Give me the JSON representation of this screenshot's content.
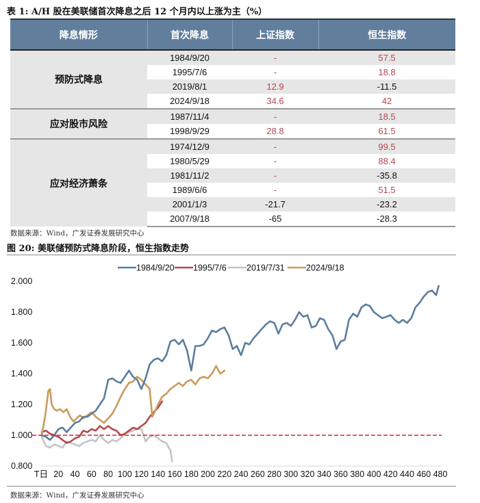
{
  "table": {
    "caption_prefix": "表 1:",
    "caption_main": "A/H 股在美联储首次降息之后 12 个月内以上涨为主（%）",
    "headers": [
      "降息情形",
      "首次降息",
      "上证指数",
      "恒生指数"
    ],
    "groups": [
      {
        "label": "预防式降息",
        "rows": [
          {
            "date": "1984/9/20",
            "sse": "-",
            "hsi": "57.5",
            "sse_color": "red",
            "hsi_color": "red"
          },
          {
            "date": "1995/7/6",
            "sse": "-",
            "hsi": "18.8",
            "sse_color": "red",
            "hsi_color": "red"
          },
          {
            "date": "2019/8/1",
            "sse": "12.9",
            "hsi": "-11.5",
            "sse_color": "red",
            "hsi_color": "black"
          },
          {
            "date": "2024/9/18",
            "sse": "34.6",
            "hsi": "42",
            "sse_color": "red",
            "hsi_color": "red"
          }
        ]
      },
      {
        "label": "应对股市风险",
        "rows": [
          {
            "date": "1987/11/4",
            "sse": "-",
            "hsi": "18.5",
            "sse_color": "red",
            "hsi_color": "red"
          },
          {
            "date": "1998/9/29",
            "sse": "28.8",
            "hsi": "61.5",
            "sse_color": "red",
            "hsi_color": "red"
          }
        ]
      },
      {
        "label": "应对经济萧条",
        "rows": [
          {
            "date": "1974/12/9",
            "sse": "-",
            "hsi": "99.5",
            "sse_color": "red",
            "hsi_color": "red"
          },
          {
            "date": "1980/5/29",
            "sse": "-",
            "hsi": "88.4",
            "sse_color": "red",
            "hsi_color": "red"
          },
          {
            "date": "1981/11/2",
            "sse": "-",
            "hsi": "-35.8",
            "sse_color": "red",
            "hsi_color": "black"
          },
          {
            "date": "1989/6/6",
            "sse": "-",
            "hsi": "51.5",
            "sse_color": "red",
            "hsi_color": "red"
          },
          {
            "date": "2001/1/3",
            "sse": "-21.7",
            "hsi": "-23.2",
            "sse_color": "black",
            "hsi_color": "black"
          },
          {
            "date": "2007/9/18",
            "sse": "-65",
            "hsi": "-28.3",
            "sse_color": "black",
            "hsi_color": "black"
          }
        ]
      }
    ],
    "source": "数据来源：Wind，广发证券发展研究中心"
  },
  "figure": {
    "caption_prefix": "图 20:",
    "caption_main": "美联储预防式降息阶段，恒生指数走势",
    "source": "数据来源：Wind，广发证券发展研究中心"
  },
  "colors": {
    "header_bg": "#617f9d",
    "positive_red": "#b5484f",
    "series_1984": "#5b7d9e",
    "series_1995": "#b5484f",
    "series_2019": "#c4c4c4",
    "series_2024": "#c99a5b",
    "baseline": "#d9242b"
  },
  "chart_data": {
    "type": "line",
    "title": "美联储预防式降息阶段，恒生指数走势",
    "xlabel": "",
    "ylabel": "",
    "ylim": [
      0.8,
      2.0
    ],
    "xlim": [
      0,
      480
    ],
    "y_ticks": [
      "2.000",
      "1.800",
      "1.600",
      "1.400",
      "1.200",
      "1.000",
      "0.800"
    ],
    "x_ticks": [
      "T日",
      "20",
      "40",
      "60",
      "80",
      "100",
      "120",
      "140",
      "160",
      "180",
      "200",
      "220",
      "240",
      "260",
      "280",
      "300",
      "320",
      "340",
      "360",
      "380",
      "400",
      "420",
      "440",
      "460",
      "480"
    ],
    "legend_position": "top",
    "grid": false,
    "reference_line": {
      "y": 1.0,
      "style": "dashed",
      "color": "#d9242b"
    },
    "series": [
      {
        "name": "1984/9/20",
        "x": [
          0,
          5,
          10,
          15,
          20,
          25,
          30,
          35,
          40,
          45,
          50,
          55,
          60,
          65,
          70,
          75,
          80,
          85,
          90,
          95,
          100,
          105,
          110,
          115,
          120,
          125,
          130,
          135,
          140,
          145,
          150,
          155,
          160,
          165,
          170,
          175,
          180,
          185,
          190,
          195,
          200,
          205,
          210,
          215,
          220,
          225,
          230,
          235,
          240,
          245,
          250,
          255,
          260,
          265,
          270,
          275,
          280,
          285,
          290,
          295,
          300,
          305,
          310,
          315,
          320,
          325,
          330,
          335,
          340,
          345,
          350,
          355,
          360,
          365,
          370,
          375,
          380,
          385,
          390,
          395,
          400,
          405,
          410,
          415,
          420,
          425,
          430,
          435,
          440,
          445,
          450,
          455,
          460,
          465,
          470,
          475,
          478
        ],
        "values": [
          1.0,
          0.99,
          0.97,
          1.0,
          1.04,
          1.05,
          1.02,
          1.05,
          1.08,
          1.09,
          1.12,
          1.12,
          1.14,
          1.16,
          1.2,
          1.24,
          1.36,
          1.37,
          1.35,
          1.34,
          1.38,
          1.42,
          1.38,
          1.36,
          1.3,
          1.37,
          1.46,
          1.49,
          1.5,
          1.48,
          1.52,
          1.61,
          1.62,
          1.59,
          1.62,
          1.55,
          1.42,
          1.58,
          1.58,
          1.59,
          1.63,
          1.68,
          1.67,
          1.69,
          1.7,
          1.65,
          1.56,
          1.58,
          1.52,
          1.6,
          1.59,
          1.63,
          1.66,
          1.69,
          1.72,
          1.74,
          1.73,
          1.66,
          1.72,
          1.73,
          1.71,
          1.75,
          1.8,
          1.77,
          1.78,
          1.7,
          1.71,
          1.76,
          1.75,
          1.69,
          1.65,
          1.56,
          1.61,
          1.62,
          1.75,
          1.79,
          1.77,
          1.83,
          1.85,
          1.84,
          1.8,
          1.78,
          1.76,
          1.77,
          1.78,
          1.75,
          1.73,
          1.75,
          1.73,
          1.76,
          1.83,
          1.86,
          1.9,
          1.93,
          1.94,
          1.91,
          1.97
        ]
      },
      {
        "name": "1995/7/6",
        "x": [
          0,
          5,
          10,
          15,
          20,
          25,
          30,
          35,
          40,
          45,
          50,
          55,
          60,
          65,
          70,
          75,
          80,
          85,
          90,
          95,
          100,
          105,
          110,
          115,
          120,
          125,
          130,
          135,
          140,
          145
        ],
        "values": [
          1.02,
          1.03,
          1.01,
          1.0,
          0.99,
          0.97,
          0.95,
          0.96,
          0.98,
          0.99,
          1.03,
          1.02,
          1.04,
          1.03,
          1.06,
          1.04,
          1.06,
          1.04,
          1.03,
          1.0,
          1.01,
          1.03,
          1.05,
          1.04,
          1.06,
          1.08,
          1.12,
          1.15,
          1.18,
          1.22
        ]
      },
      {
        "name": "2019/7/31",
        "x": [
          0,
          5,
          10,
          15,
          20,
          25,
          30,
          35,
          40,
          45,
          50,
          55,
          60,
          65,
          70,
          75,
          80,
          85,
          90,
          95,
          100,
          105,
          110,
          115,
          120,
          125,
          130,
          135,
          140,
          145,
          150,
          155,
          157
        ],
        "values": [
          0.99,
          0.93,
          0.92,
          0.94,
          0.93,
          0.92,
          0.96,
          0.95,
          0.94,
          0.93,
          0.95,
          0.96,
          0.97,
          0.96,
          1.0,
          0.97,
          0.95,
          0.97,
          0.96,
          0.98,
          1.01,
          1.02,
          1.03,
          1.04,
          1.04,
          0.96,
          0.99,
          1.0,
          0.98,
          0.96,
          0.95,
          0.9,
          0.83
        ]
      },
      {
        "name": "2024/9/18",
        "x": [
          0,
          4,
          8,
          10,
          12,
          15,
          18,
          22,
          26,
          30,
          34,
          38,
          42,
          46,
          50,
          55,
          60,
          65,
          70,
          75,
          80,
          85,
          90,
          95,
          100,
          105,
          110,
          115,
          120,
          125,
          130,
          133,
          135,
          140,
          145,
          150,
          155,
          160,
          165,
          170,
          175,
          180,
          185,
          190,
          195,
          200,
          205,
          210,
          215,
          220
        ],
        "values": [
          1.0,
          1.12,
          1.29,
          1.3,
          1.2,
          1.17,
          1.16,
          1.17,
          1.15,
          1.17,
          1.12,
          1.09,
          1.11,
          1.13,
          1.11,
          1.13,
          1.15,
          1.12,
          1.1,
          1.08,
          1.11,
          1.14,
          1.19,
          1.25,
          1.3,
          1.34,
          1.35,
          1.38,
          1.36,
          1.33,
          1.3,
          1.12,
          1.14,
          1.2,
          1.25,
          1.27,
          1.3,
          1.32,
          1.34,
          1.32,
          1.35,
          1.36,
          1.33,
          1.37,
          1.38,
          1.37,
          1.4,
          1.45,
          1.4,
          1.42
        ]
      }
    ]
  }
}
